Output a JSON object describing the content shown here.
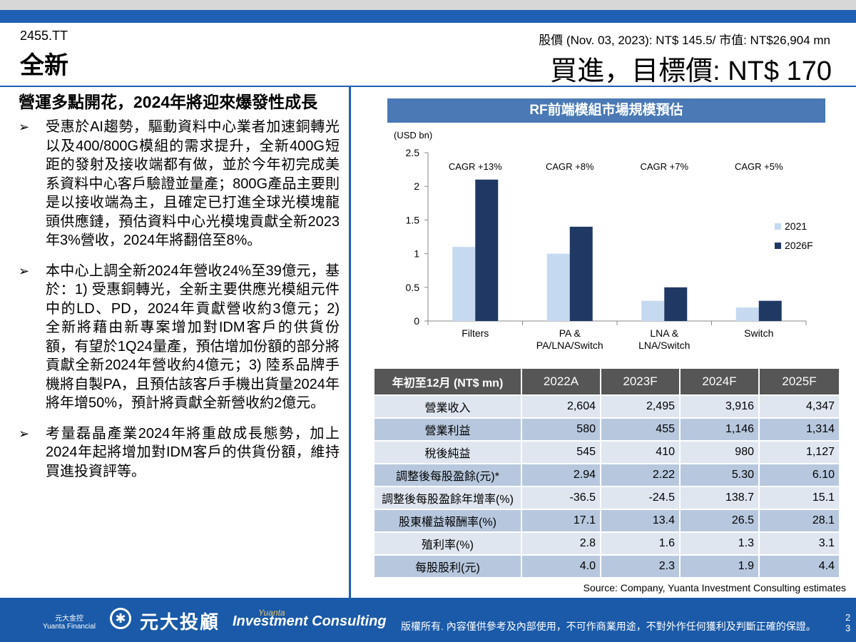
{
  "header": {
    "ticker": "2455.TT",
    "company": "全新",
    "price_info": "股價 (Nov. 03, 2023): NT$ 145.5/ 市值: NT$26,904 mn",
    "rating": "買進，目標價: NT$ 170"
  },
  "left": {
    "headline": "營運多點開花，2024年將迎來爆發性成長",
    "bullets": [
      "受惠於AI趨勢，驅動資料中心業者加速銅轉光以及400/800G模組的需求提升，全新400G短距的發射及接收端都有做，並於今年初完成美系資料中心客戶驗證並量產；800G產品主要則是以接收端為主，且確定已打進全球光模塊龍頭供應鏈，預估資料中心光模塊貢獻全新2023年3%營收，2024年將翻倍至8%。",
      "本中心上調全新2024年營收24%至39億元，基於：1) 受惠銅轉光，全新主要供應光模組元件中的LD、PD，2024年貢獻營收約3億元；2) 全新將藉由新專案增加對IDM客戶的供貨份額，有望於1Q24量產，預估增加份額的部分將貢獻全新2024年營收約4億元；3) 陸系品牌手機將自製PA，且預估該客戶手機出貨量2024年將年增50%，預計將貢獻全新營收約2億元。",
      "考量磊晶產業2024年將重啟成長態勢，加上2024年起將增加對IDM客戶的供貨份額，維持買進投資評等。"
    ]
  },
  "chart_banner": "RF前端模組市場規模預估",
  "chart_data": {
    "type": "bar",
    "unit_label": "(USD bn)",
    "categories": [
      "Filters",
      "PA &\nPA/LNA/Switch",
      "LNA &\nLNA/Switch",
      "Switch"
    ],
    "series": [
      {
        "name": "2021",
        "values": [
          1.1,
          1.0,
          0.3,
          0.2
        ],
        "color": "#c5d9f1"
      },
      {
        "name": "2026F",
        "values": [
          2.1,
          1.4,
          0.5,
          0.3
        ],
        "color": "#1f3864"
      }
    ],
    "annotations": [
      "CAGR +13%",
      "CAGR +8%",
      "CAGR +7%",
      "CAGR +5%"
    ],
    "yticks": [
      "0",
      "0.5",
      "1",
      "1.5",
      "2",
      "2.5"
    ],
    "ylim": [
      0,
      2.5
    ],
    "legend": "right"
  },
  "table": {
    "headers": [
      "年初至12月 (NT$ mn)",
      "2022A",
      "2023F",
      "2024F",
      "2025F"
    ],
    "rows": [
      {
        "label": "營業收入",
        "values": [
          "2,604",
          "2,495",
          "3,916",
          "4,347"
        ]
      },
      {
        "label": "營業利益",
        "values": [
          "580",
          "455",
          "1,146",
          "1,314"
        ]
      },
      {
        "label": "稅後純益",
        "values": [
          "545",
          "410",
          "980",
          "1,127"
        ]
      },
      {
        "label": "調整後每股盈餘(元)*",
        "values": [
          "2.94",
          "2.22",
          "5.30",
          "6.10"
        ]
      },
      {
        "label": "調整後每股盈餘年增率(%)",
        "values": [
          "-36.5",
          "-24.5",
          "138.7",
          "15.1"
        ]
      },
      {
        "label": "股東權益報酬率(%)",
        "values": [
          "17.1",
          "13.4",
          "26.5",
          "28.1"
        ]
      },
      {
        "label": "殖利率(%)",
        "values": [
          "2.8",
          "1.6",
          "1.3",
          "3.1"
        ]
      },
      {
        "label": "每股股利(元)",
        "values": [
          "4.0",
          "2.3",
          "1.9",
          "4.4"
        ]
      }
    ]
  },
  "source": "Source: Company, Yuanta Investment Consulting estimates",
  "footer": {
    "logo_small_1": "元大金控",
    "logo_small_2": "Yuanta Financial",
    "logo_text": "元大投顧",
    "brand_small": "Yuanta",
    "brand_italic": "Investment Consulting",
    "disclaimer": "版權所有. 內容僅供參考及內部使用，不可作商業用途，不對外作任何獲利及判斷正確的保證。",
    "page_num_1": "2",
    "page_num_2": "3"
  }
}
